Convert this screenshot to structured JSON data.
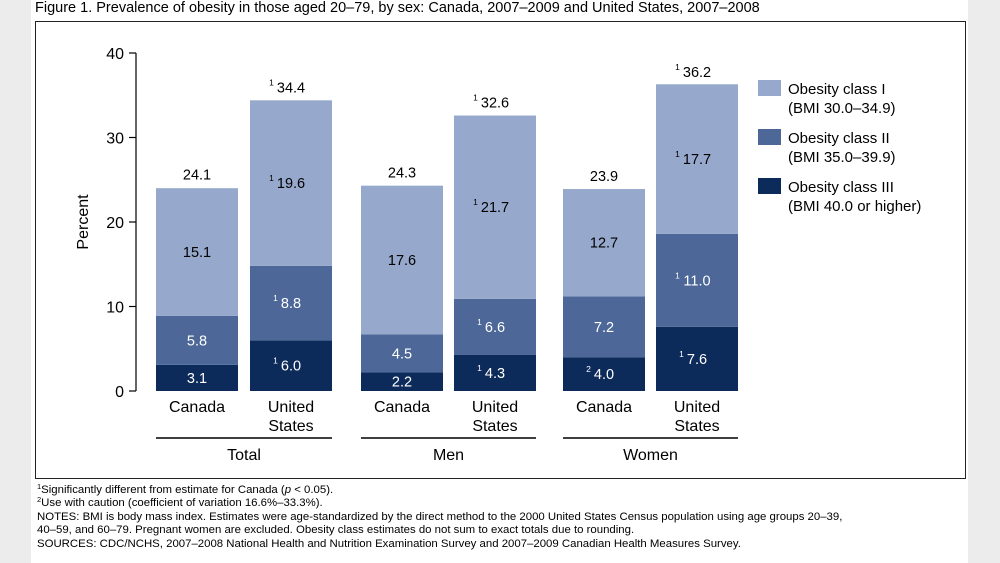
{
  "figure_title": "Figure 1. Prevalence of obesity in those aged 20–79, by sex: Canada, 2007–2009 and United States, 2007–2008",
  "colors": {
    "class1": "#96a8cb",
    "class2": "#4c6798",
    "class3": "#0d2b5a"
  },
  "chart_data": {
    "type": "bar",
    "stacked": true,
    "ylabel": "Percent",
    "ylim": [
      0,
      40
    ],
    "yticks": [
      0,
      10,
      20,
      30,
      40
    ],
    "grid": false,
    "legend_position": "right",
    "groups": [
      {
        "label": "Total",
        "bars": [
          0,
          1
        ]
      },
      {
        "label": "Men",
        "bars": [
          2,
          3
        ]
      },
      {
        "label": "Women",
        "bars": [
          4,
          5
        ]
      }
    ],
    "categories": [
      "Canada",
      "United States",
      "Canada",
      "United States",
      "Canada",
      "United States"
    ],
    "series": [
      {
        "name": "Obesity class III",
        "range": "(BMI 40.0 or higher)",
        "color_key": "class3",
        "values": [
          3.1,
          6.0,
          2.2,
          4.3,
          4.0,
          7.6
        ],
        "labels": [
          "3.1",
          "6.0",
          "2.2",
          "4.3",
          "4.0",
          "7.6"
        ],
        "footnotes": [
          "",
          "1",
          "",
          "1",
          "2",
          "1"
        ]
      },
      {
        "name": "Obesity class II",
        "range": "(BMI 35.0–39.9)",
        "color_key": "class2",
        "values": [
          5.8,
          8.8,
          4.5,
          6.6,
          7.2,
          11.0
        ],
        "labels": [
          "5.8",
          "8.8",
          "4.5",
          "6.6",
          "7.2",
          "11.0"
        ],
        "footnotes": [
          "",
          "1",
          "",
          "1",
          "",
          "1"
        ]
      },
      {
        "name": "Obesity class I",
        "range": "(BMI 30.0–34.9)",
        "color_key": "class1",
        "values": [
          15.1,
          19.6,
          17.6,
          21.7,
          12.7,
          17.7
        ],
        "labels": [
          "15.1",
          "19.6",
          "17.6",
          "21.7",
          "12.7",
          "17.7"
        ],
        "footnotes": [
          "",
          "1",
          "",
          "1",
          "",
          "1"
        ]
      }
    ],
    "totals": {
      "values": [
        24.1,
        34.4,
        24.3,
        32.6,
        23.9,
        36.2
      ],
      "labels": [
        "24.1",
        "34.4",
        "24.3",
        "32.6",
        "23.9",
        "36.2"
      ],
      "footnotes": [
        "",
        "1",
        "",
        "1",
        "",
        "1"
      ]
    },
    "legend_order": [
      2,
      1,
      0
    ]
  },
  "notes": {
    "fn1_mark": "1",
    "fn1_a": "Significantly different from estimate for Canada (",
    "fn1_p": "p",
    "fn1_b": " < 0.05).",
    "fn2_mark": "2",
    "fn2": "Use with caution (coefficient of variation 16.6%–33.3%).",
    "notes_line1": "NOTES: BMI is body mass index. Estimates were age-standardized by the direct method to the 2000 United States Census population using age groups 20–39,",
    "notes_line2": "40–59, and 60–79. Pregnant women are excluded. Obesity class estimates do not sum to exact totals due to rounding.",
    "sources": "SOURCES: CDC/NCHS, 2007–2008 National Health and Nutrition Examination Survey and 2007–2009 Canadian Health Measures Survey."
  }
}
